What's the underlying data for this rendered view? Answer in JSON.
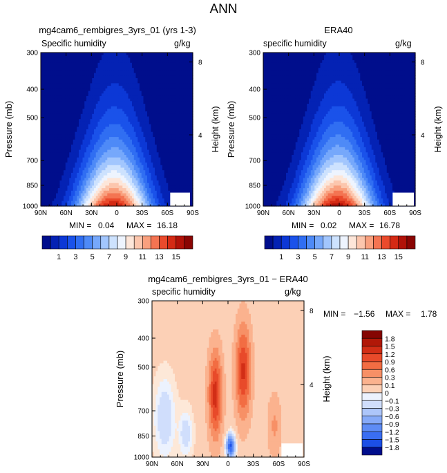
{
  "figure": {
    "title": "ANN"
  },
  "colors": {
    "humidity_palette": [
      "#000e8c",
      "#0422b4",
      "#0c38d6",
      "#1a52ea",
      "#306ef2",
      "#4e8af7",
      "#76a8fb",
      "#a2c6fd",
      "#cde2fe",
      "#eef4fe",
      "#fde6d9",
      "#fcc6ad",
      "#f9a07e",
      "#f47452",
      "#ea4a2c",
      "#d42a14",
      "#b11208",
      "#8a0503"
    ],
    "diff_palette": [
      "#000e8c",
      "#0b2ec2",
      "#1c4fe6",
      "#3a6ef2",
      "#5e8cf5",
      "#86aaf8",
      "#adc6fa",
      "#d0defc",
      "#ecf2fe",
      "#fde8d8",
      "#fcd0b6",
      "#fbb28e",
      "#f79066",
      "#f26d43",
      "#e84a2a",
      "#d22e16",
      "#b11808",
      "#850502"
    ]
  },
  "panels": [
    {
      "title": "mg4cam6_rembigres_3yrs_01 (yrs 1-3)",
      "field_label": "Specific humidity",
      "units": "g/kg",
      "min_label": "MIN =",
      "min_value": "0.04",
      "max_label": "MAX =",
      "max_value": "16.18",
      "ylabel": "Pressure (mb)",
      "y2label": "Height (km)"
    },
    {
      "title": "ERA40",
      "field_label": "specific humidity",
      "units": "g/kg",
      "min_label": "MIN =",
      "min_value": "0.02",
      "max_label": "MAX =",
      "max_value": "16.78",
      "ylabel": "Pressure (mb)",
      "y2label": "Height (km)"
    },
    {
      "title": "mg4cam6_rembigres_3yrs_01 − ERA40",
      "field_label": "specific humidity",
      "units": "g/kg",
      "min_label": "MIN =",
      "min_value": "−1.56",
      "max_label": "MAX =",
      "max_value": "1.78",
      "ylabel": "Pressure (mb)",
      "y2label": "Height (km)"
    }
  ],
  "chart_data": [
    {
      "type": "heatmap",
      "title": "mg4cam6_rembigres_3yrs_01 (yrs 1-3)",
      "ylabel": "Pressure (mb)",
      "y2label": "Height (km)",
      "x_ticks": [
        "90N",
        "60N",
        "30N",
        "0",
        "30S",
        "60S",
        "90S"
      ],
      "y_ticks": [
        "300",
        "400",
        "500",
        "700",
        "850",
        "1000"
      ],
      "y2_ticks": [
        "8",
        "4"
      ],
      "xlim": [
        "90N",
        "90S"
      ],
      "ylim": [
        1000,
        300
      ],
      "min": 0.04,
      "max": 16.18,
      "colorbar_labels": [
        "1",
        "3",
        "5",
        "7",
        "9",
        "11",
        "13",
        "15"
      ]
    },
    {
      "type": "heatmap",
      "title": "ERA40",
      "ylabel": "Pressure (mb)",
      "y2label": "Height (km)",
      "x_ticks": [
        "90N",
        "60N",
        "30N",
        "0",
        "30S",
        "60S",
        "90S"
      ],
      "y_ticks": [
        "300",
        "400",
        "500",
        "700",
        "850",
        "1000"
      ],
      "y2_ticks": [
        "8",
        "4"
      ],
      "xlim": [
        "90N",
        "90S"
      ],
      "ylim": [
        1000,
        300
      ],
      "min": 0.02,
      "max": 16.78,
      "colorbar_labels": [
        "1",
        "3",
        "5",
        "7",
        "9",
        "11",
        "13",
        "15"
      ]
    },
    {
      "type": "heatmap",
      "title": "mg4cam6_rembigres_3yrs_01 − ERA40",
      "ylabel": "Pressure (mb)",
      "y2label": "Height (km)",
      "x_ticks": [
        "90N",
        "60N",
        "30N",
        "0",
        "30S",
        "60S",
        "90S"
      ],
      "y_ticks": [
        "300",
        "400",
        "500",
        "700",
        "850",
        "1000"
      ],
      "y2_ticks": [
        "8",
        "4"
      ],
      "xlim": [
        "90N",
        "90S"
      ],
      "ylim": [
        1000,
        300
      ],
      "min": -1.56,
      "max": 1.78,
      "colorbar_labels": [
        "1.8",
        "1.5",
        "1.2",
        "0.9",
        "0.6",
        "0.3",
        "0.1",
        "0",
        "−0.1",
        "−0.3",
        "−0.6",
        "−0.9",
        "−1.2",
        "−1.5",
        "−1.8"
      ]
    }
  ]
}
